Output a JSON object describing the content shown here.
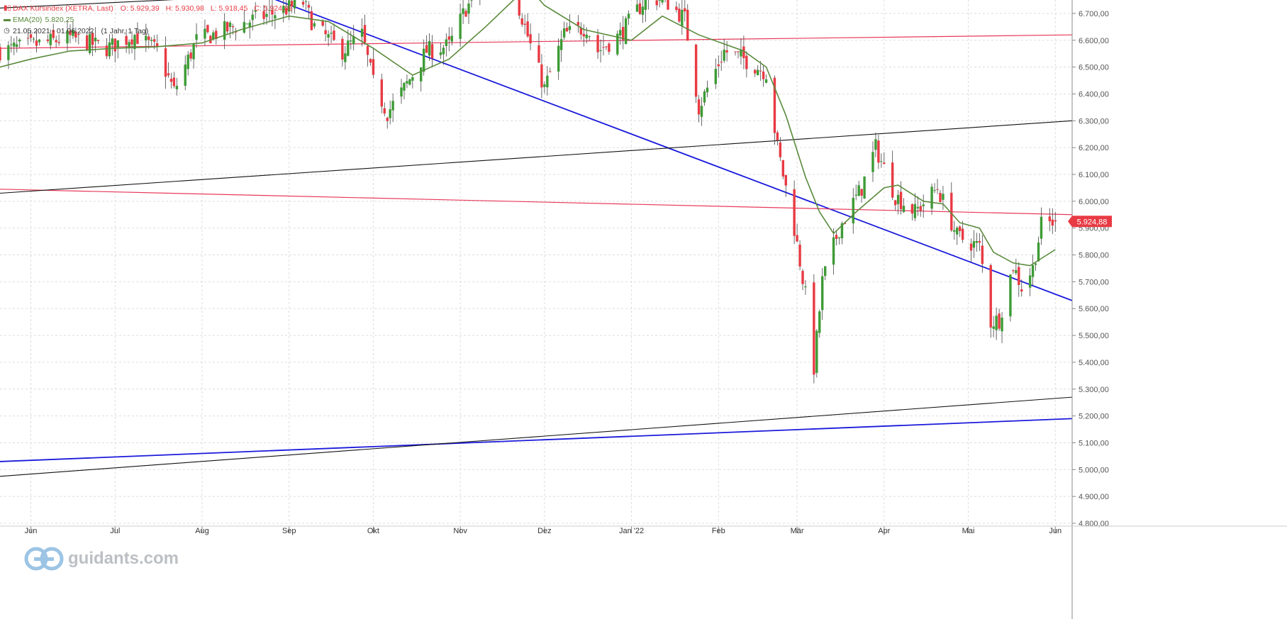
{
  "legend": {
    "instrument": "DAX Kursindex (XETRA, Last)",
    "open": "O: 5.929,39",
    "high": "H: 5.930,98",
    "low": "L: 5.918,45",
    "close": "C: 5.924,88",
    "indicator": "EMA(20)",
    "indicator_value": "5.820,25",
    "period": "21.05.2021 - 01.06.2022",
    "interval": "(1 Jahr, 1 Tag)"
  },
  "brand": {
    "name": "guidants.com",
    "logo_icon": "guidants-logo-icon"
  },
  "colors": {
    "up": "#3d9b35",
    "down": "#e83a43",
    "ema": "#5a8a3c",
    "trend_blue": "#1a1adc",
    "trend_red": "#e8395a",
    "trend_black": "#111111",
    "grid": "#dddddd",
    "axis_text": "#555555",
    "price_tag_bg": "#e83a43"
  },
  "chart_data": {
    "type": "candlestick",
    "title": "DAX Kursindex (XETRA, Last)",
    "y_axis": {
      "position": "right",
      "ylim": [
        4800,
        6750
      ],
      "ticks": [
        4800,
        4900,
        5000,
        5100,
        5200,
        5300,
        5400,
        5500,
        5600,
        5700,
        5800,
        5900,
        6000,
        6100,
        6200,
        6300,
        6400,
        6500,
        6600,
        6700
      ]
    },
    "y_tick_labels": [
      "4.800,00",
      "4.900,00",
      "5.000,00",
      "5.100,00",
      "5.200,00",
      "5.300,00",
      "5.400,00",
      "5.500,00",
      "5.600,00",
      "5.700,00",
      "5.800,00",
      "5.900,00",
      "6.000,00",
      "6.100,00",
      "6.200,00",
      "6.300,00",
      "6.400,00",
      "6.500,00",
      "6.600,00",
      "6.700,00"
    ],
    "x_axis": {
      "range": [
        "2021-05-21",
        "2022-06-07"
      ],
      "ticks": [
        {
          "label": "Jun",
          "date": "2021-06-01"
        },
        {
          "label": "Jul",
          "date": "2021-07-01"
        },
        {
          "label": "Aug",
          "date": "2021-08-01"
        },
        {
          "label": "Sep",
          "date": "2021-09-01"
        },
        {
          "label": "Okt",
          "date": "2021-10-01"
        },
        {
          "label": "Nov",
          "date": "2021-11-01"
        },
        {
          "label": "Dez",
          "date": "2021-12-01"
        },
        {
          "label": "Jan '22",
          "date": "2022-01-01"
        },
        {
          "label": "Feb",
          "date": "2022-02-01"
        },
        {
          "label": "Mär",
          "date": "2022-03-01"
        },
        {
          "label": "Apr",
          "date": "2022-04-01"
        },
        {
          "label": "Mai",
          "date": "2022-05-01"
        },
        {
          "label": "Jun",
          "date": "2022-06-01"
        }
      ]
    },
    "grid": true,
    "last_price": {
      "value": 5924.88,
      "label": "5.924,88"
    },
    "close_path": [
      [
        "2021-05-21",
        6560
      ],
      [
        "2021-06-01",
        6580
      ],
      [
        "2021-06-15",
        6610
      ],
      [
        "2021-06-28",
        6570
      ],
      [
        "2021-07-08",
        6620
      ],
      [
        "2021-07-16",
        6560
      ],
      [
        "2021-07-22",
        6410
      ],
      [
        "2021-07-30",
        6600
      ],
      [
        "2021-08-10",
        6640
      ],
      [
        "2021-08-20",
        6680
      ],
      [
        "2021-09-01",
        6720
      ],
      [
        "2021-09-06",
        6740
      ],
      [
        "2021-09-10",
        6650
      ],
      [
        "2021-09-20",
        6560
      ],
      [
        "2021-09-27",
        6620
      ],
      [
        "2021-10-01",
        6440
      ],
      [
        "2021-10-06",
        6330
      ],
      [
        "2021-10-12",
        6420
      ],
      [
        "2021-10-20",
        6560
      ],
      [
        "2021-10-28",
        6580
      ],
      [
        "2021-11-03",
        6720
      ],
      [
        "2021-11-10",
        6800
      ],
      [
        "2021-11-18",
        6860
      ],
      [
        "2021-11-26",
        6580
      ],
      [
        "2021-12-01",
        6420
      ],
      [
        "2021-12-08",
        6620
      ],
      [
        "2021-12-16",
        6650
      ],
      [
        "2021-12-20",
        6560
      ],
      [
        "2021-12-28",
        6620
      ],
      [
        "2022-01-05",
        6740
      ],
      [
        "2022-01-12",
        6760
      ],
      [
        "2022-01-20",
        6680
      ],
      [
        "2022-01-25",
        6350
      ],
      [
        "2022-02-03",
        6560
      ],
      [
        "2022-02-10",
        6530
      ],
      [
        "2022-02-18",
        6480
      ],
      [
        "2022-02-22",
        6200
      ],
      [
        "2022-02-28",
        5900
      ],
      [
        "2022-03-04",
        5650
      ],
      [
        "2022-03-07",
        5380
      ],
      [
        "2022-03-10",
        5700
      ],
      [
        "2022-03-16",
        5900
      ],
      [
        "2022-03-24",
        6050
      ],
      [
        "2022-03-29",
        6200
      ],
      [
        "2022-04-05",
        6020
      ],
      [
        "2022-04-12",
        5960
      ],
      [
        "2022-04-20",
        6050
      ],
      [
        "2022-04-27",
        5870
      ],
      [
        "2022-05-05",
        5830
      ],
      [
        "2022-05-09",
        5550
      ],
      [
        "2022-05-12",
        5560
      ],
      [
        "2022-05-17",
        5760
      ],
      [
        "2022-05-20",
        5680
      ],
      [
        "2022-05-24",
        5750
      ],
      [
        "2022-05-27",
        5910
      ],
      [
        "2022-06-01",
        5924.88
      ]
    ],
    "ema_path": [
      [
        "2021-05-21",
        6500
      ],
      [
        "2021-06-01",
        6530
      ],
      [
        "2021-06-15",
        6560
      ],
      [
        "2021-07-01",
        6570
      ],
      [
        "2021-07-15",
        6575
      ],
      [
        "2021-08-01",
        6590
      ],
      [
        "2021-08-15",
        6640
      ],
      [
        "2021-09-01",
        6690
      ],
      [
        "2021-09-15",
        6670
      ],
      [
        "2021-10-01",
        6570
      ],
      [
        "2021-10-15",
        6470
      ],
      [
        "2021-10-28",
        6530
      ],
      [
        "2021-11-10",
        6650
      ],
      [
        "2021-11-25",
        6800
      ],
      [
        "2021-12-01",
        6730
      ],
      [
        "2021-12-15",
        6640
      ],
      [
        "2022-01-01",
        6600
      ],
      [
        "2022-01-12",
        6690
      ],
      [
        "2022-01-25",
        6620
      ],
      [
        "2022-02-10",
        6560
      ],
      [
        "2022-02-18",
        6500
      ],
      [
        "2022-02-25",
        6320
      ],
      [
        "2022-03-04",
        6090
      ],
      [
        "2022-03-09",
        5960
      ],
      [
        "2022-03-14",
        5880
      ],
      [
        "2022-03-22",
        5960
      ],
      [
        "2022-04-01",
        6050
      ],
      [
        "2022-04-06",
        6060
      ],
      [
        "2022-04-15",
        6000
      ],
      [
        "2022-04-22",
        5990
      ],
      [
        "2022-04-28",
        5920
      ],
      [
        "2022-05-05",
        5900
      ],
      [
        "2022-05-10",
        5810
      ],
      [
        "2022-05-17",
        5770
      ],
      [
        "2022-05-23",
        5760
      ],
      [
        "2022-06-01",
        5820
      ]
    ],
    "trendlines": [
      {
        "color": "trend_blue",
        "width": 1.8,
        "from": [
          "2021-08-25",
          6760
        ],
        "to": [
          "2022-06-07",
          5630
        ]
      },
      {
        "color": "trend_blue",
        "width": 1.8,
        "from": [
          "2021-05-21",
          5030
        ],
        "to": [
          "2022-06-07",
          5190
        ]
      },
      {
        "color": "trend_red",
        "width": 1.2,
        "from": [
          "2021-05-21",
          6570
        ],
        "to": [
          "2022-06-07",
          6620
        ]
      },
      {
        "color": "trend_red",
        "width": 1.2,
        "from": [
          "2021-05-21",
          6045
        ],
        "to": [
          "2022-06-07",
          5950
        ]
      },
      {
        "color": "trend_black",
        "width": 1.1,
        "from": [
          "2021-05-21",
          6030
        ],
        "to": [
          "2022-06-07",
          6300
        ]
      },
      {
        "color": "trend_black",
        "width": 1.1,
        "from": [
          "2021-05-21",
          4975
        ],
        "to": [
          "2022-06-07",
          5270
        ]
      },
      {
        "color": "trend_black",
        "width": 1.1,
        "from": [
          "2021-05-21",
          6720
        ],
        "to": [
          "2021-08-08",
          6760
        ]
      }
    ]
  }
}
